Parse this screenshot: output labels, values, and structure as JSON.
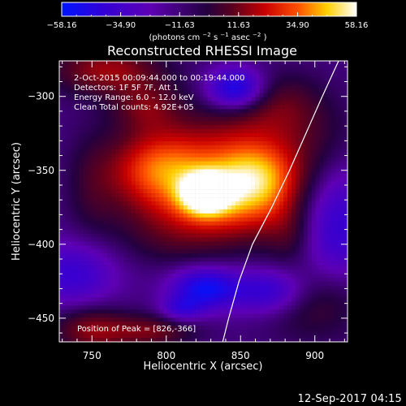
{
  "chart_data": {
    "type": "heatmap",
    "title": "Reconstructed RHESSI Image",
    "xlabel": "Heliocentric X (arcsec)",
    "ylabel": "Heliocentric Y (arcsec)",
    "xlim": [
      728,
      922
    ],
    "ylim": [
      -466,
      -276
    ],
    "x_ticks": [
      750,
      800,
      850,
      900
    ],
    "y_ticks": [
      -450,
      -400,
      -350,
      -300
    ],
    "x_tick_labels": [
      "750",
      "800",
      "850",
      "900"
    ],
    "y_tick_labels": [
      "−450",
      "−400",
      "−350",
      "−300"
    ],
    "colorbar": {
      "ticks": [
        -58.16,
        -34.9,
        -11.63,
        11.63,
        34.9,
        58.16
      ],
      "tick_labels": [
        "−58.16",
        "−34.90",
        "−11.63",
        "11.63",
        "34.90",
        "58.16"
      ],
      "unit_prefix": "(photons cm",
      "unit_exp1": "−2",
      "unit_mid": " s",
      "unit_exp2": "−1",
      "unit_suffix": " asec",
      "unit_exp3": "−2",
      "unit_close": ")"
    },
    "info_lines": [
      "2-Oct-2015 00:09:44.000 to 00:19:44.000",
      "Detectors: 1F 5F 7F, Att 1",
      "Energy Range: 6.0 – 12.0 keV",
      "Clean       Total counts: 4.92E+05"
    ],
    "peak_label": "Position of Peak = [826,-366]",
    "peak": [
      826,
      -366
    ],
    "limb_curve": [
      [
        916,
        -276
      ],
      [
        905,
        -300
      ],
      [
        894,
        -325
      ],
      [
        883,
        -350
      ],
      [
        871,
        -375
      ],
      [
        858,
        -400
      ],
      [
        849,
        -425
      ],
      [
        842,
        -450
      ],
      [
        838,
        -466
      ]
    ],
    "components": [
      {
        "x": 826,
        "y": -366,
        "sx": 12,
        "sy": 10,
        "a": 1.0
      },
      {
        "x": 860,
        "y": -358,
        "sx": 22,
        "sy": 18,
        "a": 0.84
      },
      {
        "x": 795,
        "y": -350,
        "sx": 24,
        "sy": 18,
        "a": 0.75
      },
      {
        "x": 845,
        "y": -338,
        "sx": 38,
        "sy": 25,
        "a": 0.42
      },
      {
        "x": 826,
        "y": -382,
        "sx": 36,
        "sy": 16,
        "a": 0.43
      },
      {
        "x": 760,
        "y": -282,
        "sx": 26,
        "sy": 12,
        "a": 0.5
      },
      {
        "x": 786,
        "y": -307,
        "sx": 16,
        "sy": 12,
        "a": 0.34
      },
      {
        "x": 749,
        "y": -458,
        "sx": 18,
        "sy": 11,
        "a": 0.46
      },
      {
        "x": 790,
        "y": -459,
        "sx": 20,
        "sy": 8,
        "a": 0.4
      },
      {
        "x": 900,
        "y": -438,
        "sx": 24,
        "sy": 18,
        "a": 0.34
      },
      {
        "x": 877,
        "y": -305,
        "sx": 20,
        "sy": 15,
        "a": 0.28
      },
      {
        "x": 847,
        "y": -295,
        "sx": 14,
        "sy": 10,
        "a": -0.7
      },
      {
        "x": 826,
        "y": -430,
        "sx": 16,
        "sy": 10,
        "a": -0.65
      },
      {
        "x": 870,
        "y": -432,
        "sx": 18,
        "sy": 11,
        "a": -0.52
      },
      {
        "x": 915,
        "y": -388,
        "sx": 20,
        "sy": 30,
        "a": -0.46
      },
      {
        "x": 738,
        "y": -420,
        "sx": 20,
        "sy": 16,
        "a": -0.42
      },
      {
        "x": 750,
        "y": -362,
        "sx": 12,
        "sy": 26,
        "a": 0.18
      },
      {
        "x": 802,
        "y": -401,
        "sx": 28,
        "sy": 12,
        "a": 0.1
      },
      {
        "x": 810,
        "y": -444,
        "sx": 10,
        "sy": 6,
        "a": -0.36
      },
      {
        "x": 884,
        "y": -394,
        "sx": 12,
        "sy": 14,
        "a": 0.24
      },
      {
        "x": 904,
        "y": -328,
        "sx": 18,
        "sy": 18,
        "a": 0.12
      }
    ]
  },
  "footer": {
    "timestamp": "12-Sep-2017 04:15"
  }
}
